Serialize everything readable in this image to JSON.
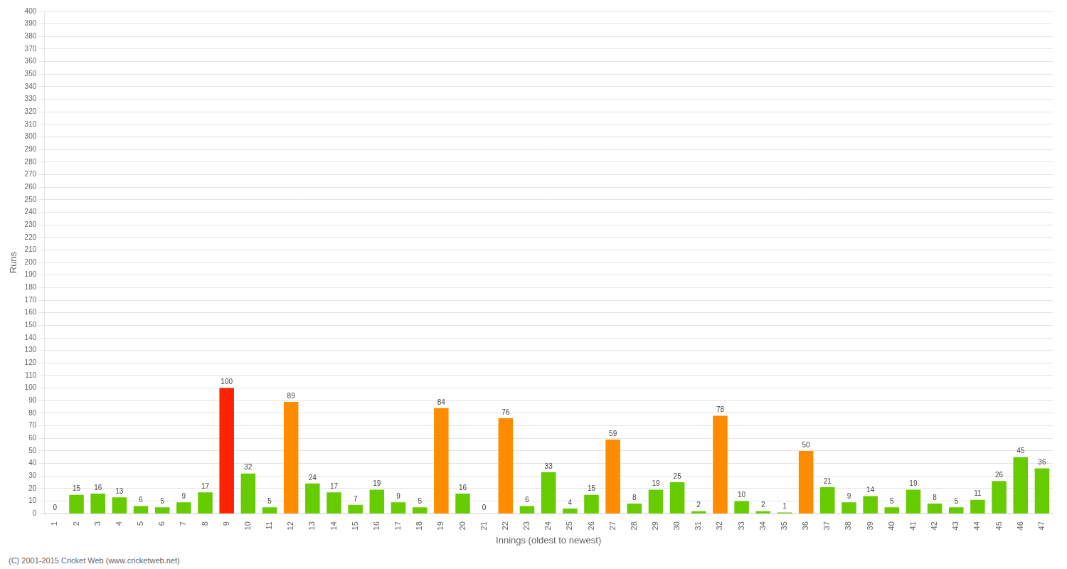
{
  "chart_data": {
    "type": "bar",
    "xlabel": "Innings (oldest to newest)",
    "ylabel": "Runs",
    "footnote": "(C) 2001-2015 Cricket Web (www.cricketweb.net)",
    "categories": [
      "1",
      "2",
      "3",
      "4",
      "5",
      "6",
      "7",
      "8",
      "9",
      "10",
      "11",
      "12",
      "13",
      "14",
      "15",
      "16",
      "17",
      "18",
      "19",
      "20",
      "21",
      "22",
      "23",
      "24",
      "25",
      "26",
      "27",
      "28",
      "29",
      "30",
      "31",
      "32",
      "33",
      "34",
      "35",
      "36",
      "37",
      "38",
      "39",
      "40",
      "41",
      "42",
      "43",
      "44",
      "45",
      "46",
      "47"
    ],
    "values": [
      0,
      15,
      16,
      13,
      6,
      5,
      9,
      17,
      100,
      32,
      5,
      89,
      24,
      17,
      7,
      19,
      9,
      5,
      84,
      16,
      0,
      76,
      6,
      33,
      4,
      15,
      59,
      8,
      19,
      25,
      2,
      78,
      10,
      2,
      1,
      50,
      21,
      9,
      14,
      5,
      19,
      8,
      5,
      11,
      26,
      45,
      36
    ],
    "colors": [
      "#66CC00",
      "#66CC00",
      "#66CC00",
      "#66CC00",
      "#66CC00",
      "#66CC00",
      "#66CC00",
      "#66CC00",
      "#FF2200",
      "#66CC00",
      "#66CC00",
      "#FF8C00",
      "#66CC00",
      "#66CC00",
      "#66CC00",
      "#66CC00",
      "#66CC00",
      "#66CC00",
      "#FF8C00",
      "#66CC00",
      "#66CC00",
      "#FF8C00",
      "#66CC00",
      "#66CC00",
      "#66CC00",
      "#66CC00",
      "#FF8C00",
      "#66CC00",
      "#66CC00",
      "#66CC00",
      "#66CC00",
      "#FF8C00",
      "#66CC00",
      "#66CC00",
      "#66CC00",
      "#FF8C00",
      "#66CC00",
      "#66CC00",
      "#66CC00",
      "#66CC00",
      "#66CC00",
      "#66CC00",
      "#66CC00",
      "#66CC00",
      "#66CC00",
      "#66CC00",
      "#66CC00"
    ],
    "ylim": [
      0,
      400
    ],
    "yticks": [
      0,
      10,
      20,
      30,
      40,
      50,
      60,
      70,
      80,
      90,
      100,
      110,
      120,
      130,
      140,
      150,
      160,
      170,
      180,
      190,
      200,
      210,
      220,
      230,
      240,
      250,
      260,
      270,
      280,
      290,
      300,
      310,
      320,
      330,
      340,
      350,
      360,
      370,
      380,
      390,
      400
    ],
    "grid": true,
    "data_labels": true
  }
}
